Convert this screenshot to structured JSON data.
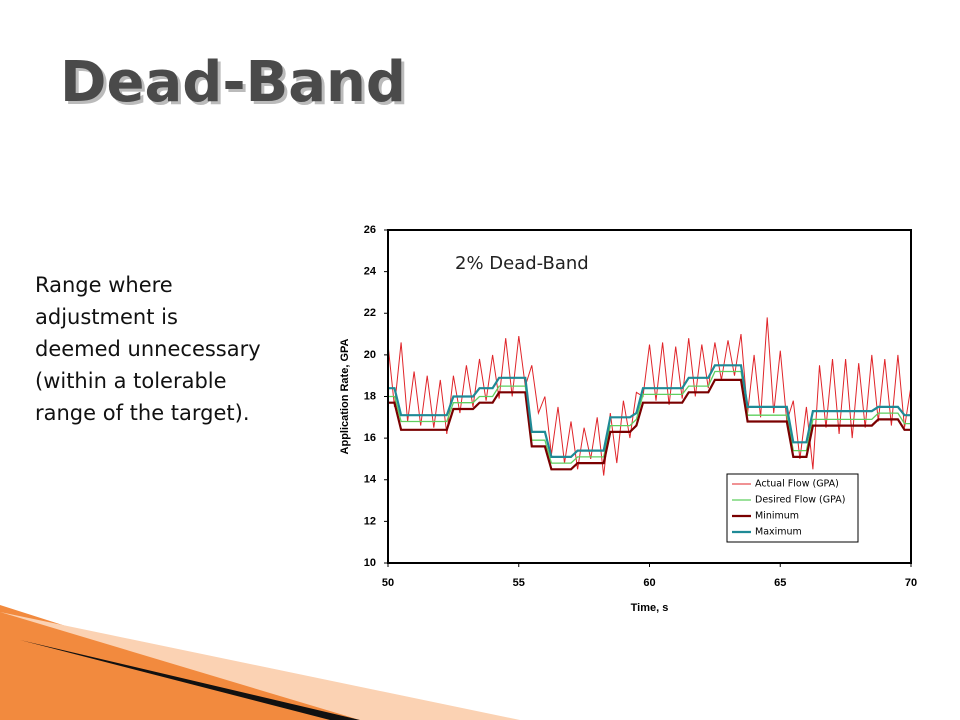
{
  "title": "Dead-Band",
  "bullet_lines": [
    "Range where",
    "adjustment is",
    "deemed unnecessary",
    "(within a tolerable",
    "range of the target)."
  ],
  "chart_data": {
    "type": "line",
    "annotation": "2% Dead-Band",
    "xlabel": "Time, s",
    "ylabel": "Application Rate, GPA",
    "xlim": [
      50,
      70
    ],
    "ylim": [
      10,
      26
    ],
    "xticks": [
      50,
      55,
      60,
      65,
      70
    ],
    "yticks": [
      10,
      12,
      14,
      16,
      18,
      20,
      22,
      24,
      26
    ],
    "legend": "lower right",
    "x": [
      50,
      50.25,
      50.5,
      50.75,
      51,
      51.25,
      51.5,
      51.75,
      52,
      52.25,
      52.5,
      52.75,
      53,
      53.25,
      53.5,
      53.75,
      54,
      54.25,
      54.5,
      54.75,
      55,
      55.25,
      55.5,
      55.75,
      56,
      56.25,
      56.5,
      56.75,
      57,
      57.25,
      57.5,
      57.75,
      58,
      58.25,
      58.5,
      58.75,
      59,
      59.25,
      59.5,
      59.75,
      60,
      60.25,
      60.5,
      60.75,
      61,
      61.25,
      61.5,
      61.75,
      62,
      62.25,
      62.5,
      62.75,
      63,
      63.25,
      63.5,
      63.75,
      64,
      64.25,
      64.5,
      64.75,
      65,
      65.25,
      65.5,
      65.75,
      66,
      66.25,
      66.5,
      66.75,
      67,
      67.25,
      67.5,
      67.75,
      68,
      68.25,
      68.5,
      68.75,
      69,
      69.25,
      69.5,
      69.75,
      70
    ],
    "series": [
      {
        "name": "Actual Flow (GPA)",
        "color": "#e0252a",
        "width": 1,
        "values": [
          20.5,
          17.5,
          20.6,
          16.8,
          19.2,
          16.6,
          19.0,
          16.5,
          18.8,
          16.2,
          19.0,
          17.2,
          19.5,
          17.5,
          19.8,
          17.8,
          20.0,
          17.9,
          20.8,
          18.0,
          20.9,
          18.5,
          19.5,
          17.2,
          18.0,
          15.2,
          17.5,
          14.8,
          16.8,
          14.5,
          16.5,
          15.0,
          17.0,
          14.2,
          17.2,
          14.8,
          17.8,
          16.0,
          18.2,
          18.0,
          20.5,
          17.8,
          20.6,
          17.6,
          20.4,
          17.9,
          20.8,
          18.0,
          20.5,
          18.4,
          20.6,
          18.8,
          20.7,
          19.0,
          21.0,
          17.2,
          20.0,
          17.0,
          21.8,
          17.2,
          20.2,
          16.8,
          17.8,
          15.0,
          17.5,
          14.5,
          19.5,
          16.5,
          19.8,
          16.2,
          19.8,
          16.0,
          19.6,
          16.5,
          20.0,
          16.8,
          19.8,
          16.6,
          20.0,
          16.5,
          18.5
        ]
      },
      {
        "name": "Desired Flow (GPA)",
        "color": "#5fcf5f",
        "width": 1.3,
        "values": [
          18.0,
          18.0,
          16.8,
          16.8,
          16.8,
          16.8,
          16.8,
          16.8,
          16.8,
          16.8,
          17.7,
          17.7,
          17.7,
          17.7,
          18.0,
          18.0,
          18.0,
          18.5,
          18.5,
          18.5,
          18.5,
          18.5,
          15.9,
          15.9,
          15.9,
          14.8,
          14.8,
          14.8,
          14.8,
          15.1,
          15.1,
          15.1,
          15.1,
          15.1,
          16.6,
          16.6,
          16.6,
          16.6,
          16.9,
          18.1,
          18.1,
          18.1,
          18.1,
          18.1,
          18.1,
          18.1,
          18.5,
          18.5,
          18.5,
          18.5,
          19.2,
          19.2,
          19.2,
          19.2,
          19.2,
          17.1,
          17.1,
          17.1,
          17.1,
          17.1,
          17.1,
          17.1,
          15.4,
          15.4,
          15.4,
          16.9,
          16.9,
          16.9,
          16.9,
          16.9,
          16.9,
          16.9,
          16.9,
          16.9,
          16.9,
          17.2,
          17.2,
          17.2,
          17.2,
          16.7,
          16.7
        ]
      },
      {
        "name": "Minimum",
        "color": "#7a0000",
        "width": 2.2,
        "values": [
          17.7,
          17.7,
          16.4,
          16.4,
          16.4,
          16.4,
          16.4,
          16.4,
          16.4,
          16.4,
          17.4,
          17.4,
          17.4,
          17.4,
          17.7,
          17.7,
          17.7,
          18.2,
          18.2,
          18.2,
          18.2,
          18.2,
          15.6,
          15.6,
          15.6,
          14.5,
          14.5,
          14.5,
          14.5,
          14.8,
          14.8,
          14.8,
          14.8,
          14.8,
          16.3,
          16.3,
          16.3,
          16.3,
          16.6,
          17.7,
          17.7,
          17.7,
          17.7,
          17.7,
          17.7,
          17.7,
          18.2,
          18.2,
          18.2,
          18.2,
          18.8,
          18.8,
          18.8,
          18.8,
          18.8,
          16.8,
          16.8,
          16.8,
          16.8,
          16.8,
          16.8,
          16.8,
          15.1,
          15.1,
          15.1,
          16.6,
          16.6,
          16.6,
          16.6,
          16.6,
          16.6,
          16.6,
          16.6,
          16.6,
          16.6,
          16.9,
          16.9,
          16.9,
          16.9,
          16.4,
          16.4
        ]
      },
      {
        "name": "Maximum",
        "color": "#1f8a96",
        "width": 2.2,
        "values": [
          18.4,
          18.4,
          17.1,
          17.1,
          17.1,
          17.1,
          17.1,
          17.1,
          17.1,
          17.1,
          18.0,
          18.0,
          18.0,
          18.0,
          18.4,
          18.4,
          18.4,
          18.9,
          18.9,
          18.9,
          18.9,
          18.9,
          16.3,
          16.3,
          16.3,
          15.1,
          15.1,
          15.1,
          15.1,
          15.4,
          15.4,
          15.4,
          15.4,
          15.4,
          17.0,
          17.0,
          17.0,
          17.0,
          17.2,
          18.4,
          18.4,
          18.4,
          18.4,
          18.4,
          18.4,
          18.4,
          18.9,
          18.9,
          18.9,
          18.9,
          19.5,
          19.5,
          19.5,
          19.5,
          19.5,
          17.5,
          17.5,
          17.5,
          17.5,
          17.5,
          17.5,
          17.5,
          15.8,
          15.8,
          15.8,
          17.3,
          17.3,
          17.3,
          17.3,
          17.3,
          17.3,
          17.3,
          17.3,
          17.3,
          17.3,
          17.5,
          17.5,
          17.5,
          17.5,
          17.1,
          17.1
        ]
      }
    ]
  }
}
